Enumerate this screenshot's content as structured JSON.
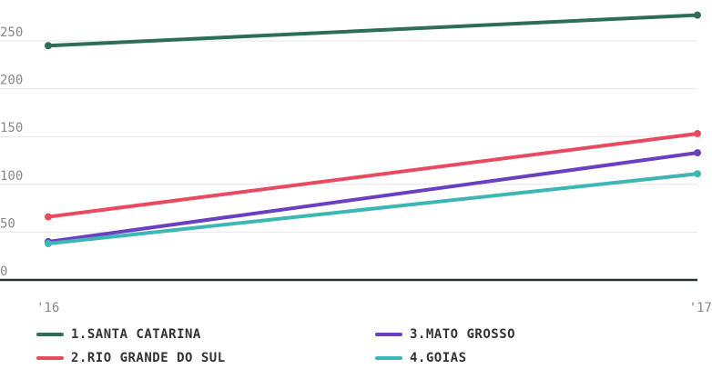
{
  "chart_data": {
    "type": "line",
    "x": [
      "'16",
      "'17"
    ],
    "series": [
      {
        "name": "1.SANTA CATARINA",
        "values": [
          245,
          277
        ],
        "color": "#2d6e57"
      },
      {
        "name": "2.RIO GRANDE DO SUL",
        "values": [
          66,
          153
        ],
        "color": "#e84a5f"
      },
      {
        "name": "3.MATO GROSSO",
        "values": [
          40,
          133
        ],
        "color": "#6a3fc2"
      },
      {
        "name": "4.GOIAS",
        "values": [
          38,
          111
        ],
        "color": "#3cb7b4"
      }
    ],
    "ylim": [
      0,
      290
    ],
    "yticks": [
      "0",
      "50",
      "100",
      "150",
      "200",
      "250"
    ],
    "grid": true,
    "legend_position": "bottom",
    "title": "",
    "xlabel": "",
    "ylabel": ""
  }
}
